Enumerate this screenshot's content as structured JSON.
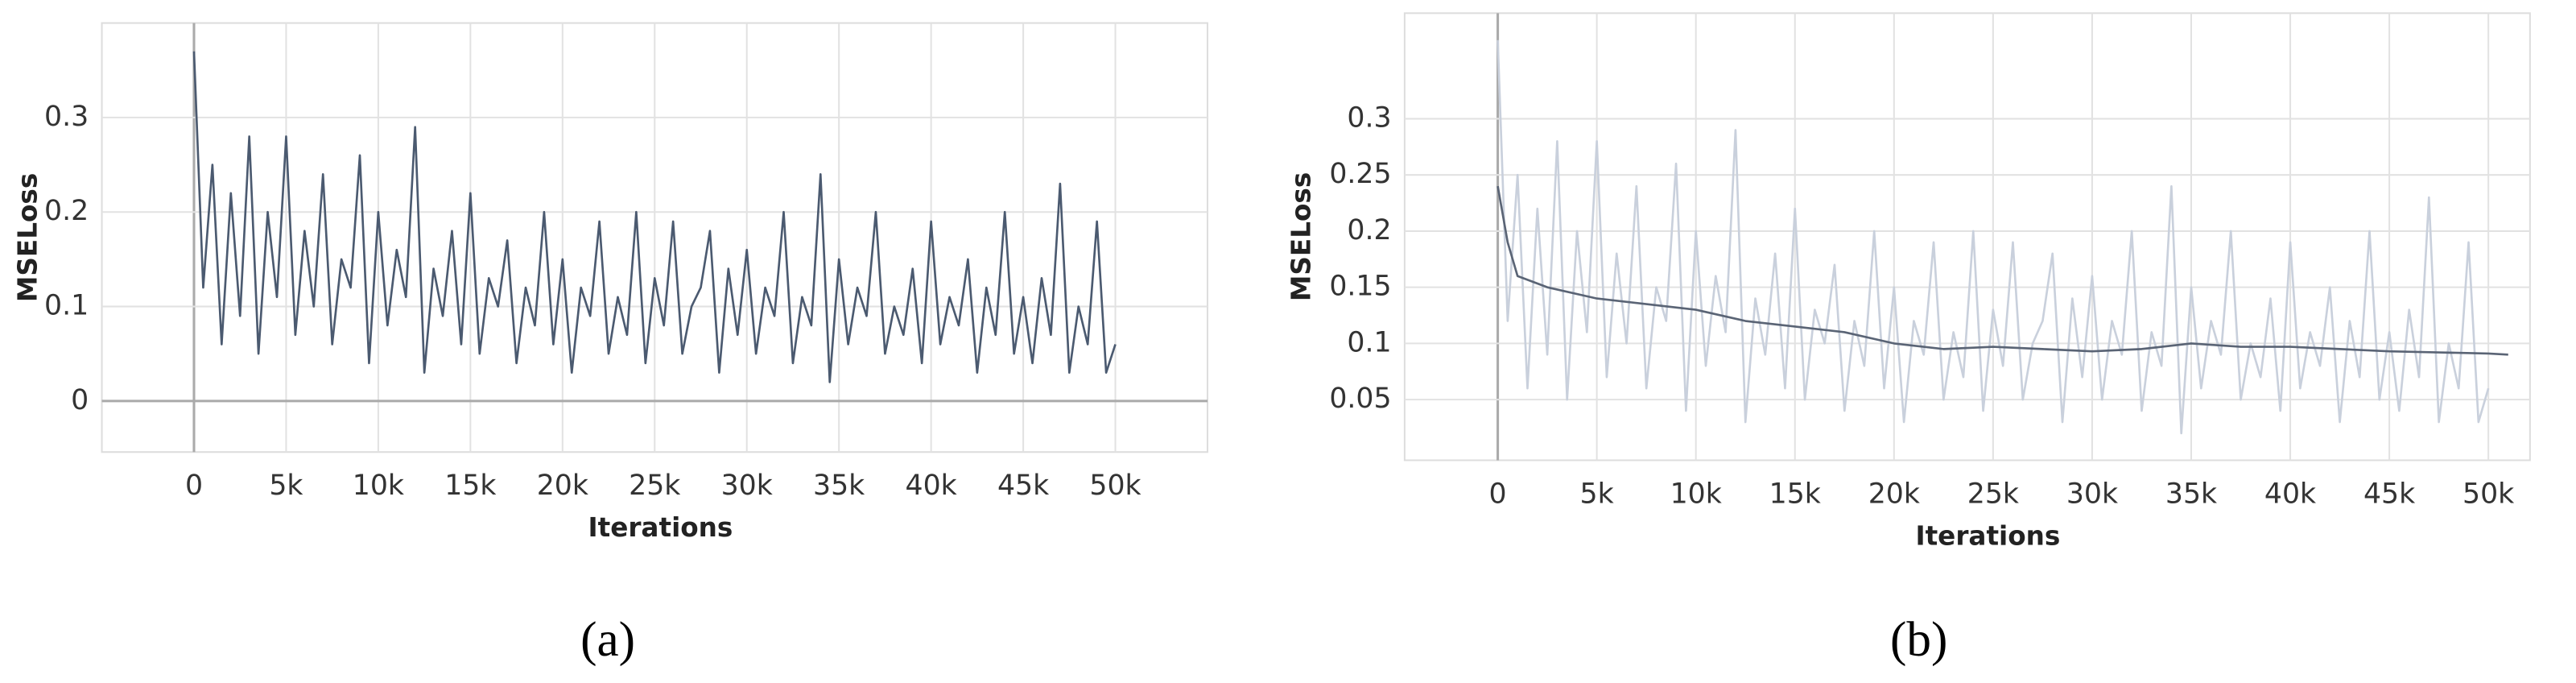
{
  "chart_data": [
    {
      "type": "line",
      "caption": "(a)",
      "xlabel": "Iterations",
      "ylabel": "MSELoss",
      "xlim": [
        -5000,
        55000
      ],
      "ylim": [
        -0.054,
        0.4
      ],
      "xticks": [
        0,
        {
          "value": 5000,
          "label": "5k"
        },
        {
          "value": 10000,
          "label": "10k"
        },
        {
          "value": 15000,
          "label": "15k"
        },
        {
          "value": 20000,
          "label": "20k"
        },
        {
          "value": 25000,
          "label": "25k"
        },
        {
          "value": 30000,
          "label": "30k"
        },
        {
          "value": 35000,
          "label": "35k"
        },
        {
          "value": 40000,
          "label": "40k"
        },
        {
          "value": 45000,
          "label": "45k"
        },
        {
          "value": 50000,
          "label": "50k"
        }
      ],
      "yticks": [
        0,
        0.1,
        0.2,
        0.3
      ],
      "grid": true,
      "series": [
        {
          "color": "#4b5a70",
          "x": [
            0,
            500,
            1000,
            1500,
            2000,
            2500,
            3000,
            3500,
            4000,
            4500,
            5000,
            5500,
            6000,
            6500,
            7000,
            7500,
            8000,
            8500,
            9000,
            9500,
            10000,
            10500,
            11000,
            11500,
            12000,
            12500,
            13000,
            13500,
            14000,
            14500,
            15000,
            15500,
            16000,
            16500,
            17000,
            17500,
            18000,
            18500,
            19000,
            19500,
            20000,
            20500,
            21000,
            21500,
            22000,
            22500,
            23000,
            23500,
            24000,
            24500,
            25000,
            25500,
            26000,
            26500,
            27000,
            27500,
            28000,
            28500,
            29000,
            29500,
            30000,
            30500,
            31000,
            31500,
            32000,
            32500,
            33000,
            33500,
            34000,
            34500,
            35000,
            35500,
            36000,
            36500,
            37000,
            37500,
            38000,
            38500,
            39000,
            39500,
            40000,
            40500,
            41000,
            41500,
            42000,
            42500,
            43000,
            43500,
            44000,
            44500,
            45000,
            45500,
            46000,
            46500,
            47000,
            47500,
            48000,
            48500,
            49000,
            49500,
            50000
          ],
          "values": [
            0.37,
            0.12,
            0.25,
            0.06,
            0.22,
            0.09,
            0.28,
            0.05,
            0.2,
            0.11,
            0.28,
            0.07,
            0.18,
            0.1,
            0.24,
            0.06,
            0.15,
            0.12,
            0.26,
            0.04,
            0.2,
            0.08,
            0.16,
            0.11,
            0.29,
            0.03,
            0.14,
            0.09,
            0.18,
            0.06,
            0.22,
            0.05,
            0.13,
            0.1,
            0.17,
            0.04,
            0.12,
            0.08,
            0.2,
            0.06,
            0.15,
            0.03,
            0.12,
            0.09,
            0.19,
            0.05,
            0.11,
            0.07,
            0.2,
            0.04,
            0.13,
            0.08,
            0.19,
            0.05,
            0.1,
            0.12,
            0.18,
            0.03,
            0.14,
            0.07,
            0.16,
            0.05,
            0.12,
            0.09,
            0.2,
            0.04,
            0.11,
            0.08,
            0.24,
            0.02,
            0.15,
            0.06,
            0.12,
            0.09,
            0.2,
            0.05,
            0.1,
            0.07,
            0.14,
            0.04,
            0.19,
            0.06,
            0.11,
            0.08,
            0.15,
            0.03,
            0.12,
            0.07,
            0.2,
            0.05,
            0.11,
            0.04,
            0.13,
            0.07,
            0.23,
            0.03,
            0.1,
            0.06,
            0.19,
            0.03,
            0.06
          ]
        }
      ]
    },
    {
      "type": "line",
      "caption": "(b)",
      "xlabel": "Iterations",
      "ylabel": "MSELoss",
      "xlim": [
        -4700,
        52100
      ],
      "ylim": [
        -0.004,
        0.394
      ],
      "xticks": [
        0,
        {
          "value": 5000,
          "label": "5k"
        },
        {
          "value": 10000,
          "label": "10k"
        },
        {
          "value": 15000,
          "label": "15k"
        },
        {
          "value": 20000,
          "label": "20k"
        },
        {
          "value": 25000,
          "label": "25k"
        },
        {
          "value": 30000,
          "label": "30k"
        },
        {
          "value": 35000,
          "label": "35k"
        },
        {
          "value": 40000,
          "label": "40k"
        },
        {
          "value": 45000,
          "label": "45k"
        },
        {
          "value": 50000,
          "label": "50k"
        }
      ],
      "yticks": [
        0.05,
        0.1,
        0.15,
        0.2,
        0.25,
        0.3
      ],
      "grid": true,
      "series": [
        {
          "color": "#c9d0dc",
          "x": [
            0,
            500,
            1000,
            1500,
            2000,
            2500,
            3000,
            3500,
            4000,
            4500,
            5000,
            5500,
            6000,
            6500,
            7000,
            7500,
            8000,
            8500,
            9000,
            9500,
            10000,
            10500,
            11000,
            11500,
            12000,
            12500,
            13000,
            13500,
            14000,
            14500,
            15000,
            15500,
            16000,
            16500,
            17000,
            17500,
            18000,
            18500,
            19000,
            19500,
            20000,
            20500,
            21000,
            21500,
            22000,
            22500,
            23000,
            23500,
            24000,
            24500,
            25000,
            25500,
            26000,
            26500,
            27000,
            27500,
            28000,
            28500,
            29000,
            29500,
            30000,
            30500,
            31000,
            31500,
            32000,
            32500,
            33000,
            33500,
            34000,
            34500,
            35000,
            35500,
            36000,
            36500,
            37000,
            37500,
            38000,
            38500,
            39000,
            39500,
            40000,
            40500,
            41000,
            41500,
            42000,
            42500,
            43000,
            43500,
            44000,
            44500,
            45000,
            45500,
            46000,
            46500,
            47000,
            47500,
            48000,
            48500,
            49000,
            49500,
            50000
          ],
          "values": [
            0.37,
            0.12,
            0.25,
            0.06,
            0.22,
            0.09,
            0.28,
            0.05,
            0.2,
            0.11,
            0.28,
            0.07,
            0.18,
            0.1,
            0.24,
            0.06,
            0.15,
            0.12,
            0.26,
            0.04,
            0.2,
            0.08,
            0.16,
            0.11,
            0.29,
            0.03,
            0.14,
            0.09,
            0.18,
            0.06,
            0.22,
            0.05,
            0.13,
            0.1,
            0.17,
            0.04,
            0.12,
            0.08,
            0.2,
            0.06,
            0.15,
            0.03,
            0.12,
            0.09,
            0.19,
            0.05,
            0.11,
            0.07,
            0.2,
            0.04,
            0.13,
            0.08,
            0.19,
            0.05,
            0.1,
            0.12,
            0.18,
            0.03,
            0.14,
            0.07,
            0.16,
            0.05,
            0.12,
            0.09,
            0.2,
            0.04,
            0.11,
            0.08,
            0.24,
            0.02,
            0.15,
            0.06,
            0.12,
            0.09,
            0.2,
            0.05,
            0.1,
            0.07,
            0.14,
            0.04,
            0.19,
            0.06,
            0.11,
            0.08,
            0.15,
            0.03,
            0.12,
            0.07,
            0.2,
            0.05,
            0.11,
            0.04,
            0.13,
            0.07,
            0.23,
            0.03,
            0.1,
            0.06,
            0.19,
            0.03,
            0.06
          ]
        },
        {
          "color": "#5a6475",
          "x": [
            0,
            500,
            1000,
            2500,
            5000,
            7500,
            10000,
            12500,
            15000,
            17500,
            20000,
            22500,
            25000,
            27500,
            30000,
            32500,
            35000,
            37500,
            40000,
            42500,
            45000,
            47500,
            50000,
            51000
          ],
          "values": [
            0.24,
            0.19,
            0.16,
            0.15,
            0.14,
            0.135,
            0.13,
            0.12,
            0.115,
            0.11,
            0.1,
            0.095,
            0.097,
            0.095,
            0.093,
            0.095,
            0.1,
            0.097,
            0.097,
            0.095,
            0.093,
            0.092,
            0.091,
            0.09
          ]
        }
      ]
    }
  ]
}
